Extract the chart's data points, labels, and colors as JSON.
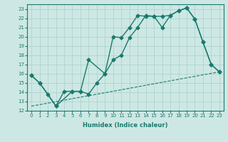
{
  "title": "",
  "xlabel": "Humidex (Indice chaleur)",
  "xlim": [
    -0.5,
    23.5
  ],
  "ylim": [
    12,
    23.5
  ],
  "yticks": [
    12,
    13,
    14,
    15,
    16,
    17,
    18,
    19,
    20,
    21,
    22,
    23
  ],
  "xticks": [
    0,
    1,
    2,
    3,
    4,
    5,
    6,
    7,
    8,
    9,
    10,
    11,
    12,
    13,
    14,
    15,
    16,
    17,
    18,
    19,
    20,
    21,
    22,
    23
  ],
  "bg_color": "#cde8e4",
  "line_color": "#1a7a6e",
  "grid_color": "#aacfca",
  "lines": [
    {
      "x": [
        0,
        1,
        2,
        3,
        4,
        5,
        6,
        7,
        8,
        9,
        10,
        11,
        12,
        13,
        14,
        15,
        16,
        17,
        18,
        19,
        20,
        21,
        22,
        23
      ],
      "y": [
        15.8,
        15.0,
        13.8,
        12.5,
        14.1,
        14.1,
        14.1,
        13.8,
        15.0,
        16.0,
        20.0,
        19.9,
        21.0,
        22.3,
        22.2,
        22.2,
        21.0,
        22.3,
        22.8,
        23.1,
        21.9,
        19.4,
        17.0,
        16.2
      ],
      "marker": "D",
      "markersize": 2.5,
      "linewidth": 1.0
    },
    {
      "x": [
        0,
        1,
        3,
        5,
        6,
        7,
        9,
        10,
        11,
        12,
        13,
        14,
        15,
        16,
        17,
        18,
        19,
        20,
        21,
        22,
        23
      ],
      "y": [
        15.8,
        15.0,
        12.5,
        14.1,
        14.1,
        17.5,
        16.0,
        17.5,
        18.0,
        19.9,
        21.0,
        22.3,
        22.2,
        22.2,
        22.3,
        22.8,
        23.1,
        21.9,
        19.4,
        17.0,
        16.2
      ],
      "marker": "D",
      "markersize": 2.5,
      "linewidth": 1.0
    },
    {
      "x": [
        0,
        23
      ],
      "y": [
        12.5,
        16.2
      ],
      "marker": null,
      "linewidth": 0.8,
      "linestyle": "--"
    }
  ]
}
